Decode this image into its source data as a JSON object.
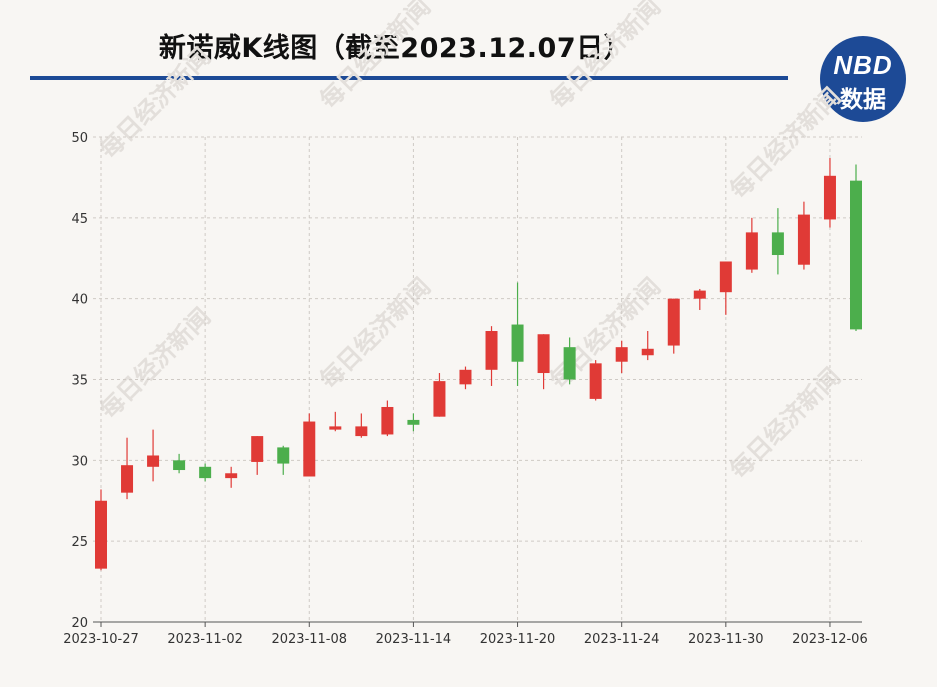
{
  "title": "新诺威K线图（截至2023.12.07日）",
  "logo": {
    "top": "NBD",
    "bottom": "数据"
  },
  "watermark": "每日经济新闻",
  "colors": {
    "up": "#e03a36",
    "down": "#4cae4c",
    "title_rule": "#1d4a96",
    "logo_bg": "#1d4a96",
    "background": "#f8f6f3"
  },
  "chart_data": {
    "type": "candlestick",
    "title": "新诺威K线图（截至2023.12.07日）",
    "ylim": [
      20,
      50
    ],
    "yticks": [
      20,
      25,
      30,
      35,
      40,
      45,
      50
    ],
    "xtick_labels": [
      "2023-10-27",
      "2023-11-02",
      "2023-11-08",
      "2023-11-14",
      "2023-11-20",
      "2023-11-24",
      "2023-11-30",
      "2023-12-06"
    ],
    "xtick_index": [
      0,
      4,
      8,
      12,
      16,
      20,
      24,
      28
    ],
    "grid": true,
    "candles": [
      {
        "o": 23.3,
        "c": 27.5,
        "h": 28.2,
        "l": 23.2
      },
      {
        "o": 28.0,
        "c": 29.7,
        "h": 31.4,
        "l": 27.6
      },
      {
        "o": 29.6,
        "c": 30.3,
        "h": 31.9,
        "l": 28.7
      },
      {
        "o": 30.0,
        "c": 29.4,
        "h": 30.4,
        "l": 29.2
      },
      {
        "o": 29.6,
        "c": 28.9,
        "h": 29.8,
        "l": 28.7
      },
      {
        "o": 28.9,
        "c": 29.2,
        "h": 29.6,
        "l": 28.3
      },
      {
        "o": 29.9,
        "c": 31.5,
        "h": 31.5,
        "l": 29.1
      },
      {
        "o": 30.8,
        "c": 29.8,
        "h": 30.9,
        "l": 29.1
      },
      {
        "o": 29.0,
        "c": 32.4,
        "h": 32.9,
        "l": 29.0
      },
      {
        "o": 31.9,
        "c": 32.1,
        "h": 33.0,
        "l": 31.8
      },
      {
        "o": 31.5,
        "c": 32.1,
        "h": 32.9,
        "l": 31.4
      },
      {
        "o": 31.6,
        "c": 33.3,
        "h": 33.7,
        "l": 31.5
      },
      {
        "o": 32.5,
        "c": 32.2,
        "h": 32.9,
        "l": 31.8
      },
      {
        "o": 32.7,
        "c": 34.9,
        "h": 35.4,
        "l": 32.7
      },
      {
        "o": 34.7,
        "c": 35.6,
        "h": 35.8,
        "l": 34.4
      },
      {
        "o": 35.6,
        "c": 38.0,
        "h": 38.3,
        "l": 34.6
      },
      {
        "o": 38.4,
        "c": 36.1,
        "h": 41.0,
        "l": 34.6
      },
      {
        "o": 35.4,
        "c": 37.8,
        "h": 37.8,
        "l": 34.4
      },
      {
        "o": 37.0,
        "c": 35.0,
        "h": 37.6,
        "l": 34.7
      },
      {
        "o": 33.8,
        "c": 36.0,
        "h": 36.2,
        "l": 33.7
      },
      {
        "o": 36.1,
        "c": 37.0,
        "h": 37.4,
        "l": 35.4
      },
      {
        "o": 36.5,
        "c": 36.9,
        "h": 38.0,
        "l": 36.2
      },
      {
        "o": 37.1,
        "c": 40.0,
        "h": 40.0,
        "l": 36.6
      },
      {
        "o": 40.0,
        "c": 40.5,
        "h": 40.6,
        "l": 39.3
      },
      {
        "o": 40.4,
        "c": 42.3,
        "h": 42.3,
        "l": 39.0
      },
      {
        "o": 41.8,
        "c": 44.1,
        "h": 45.0,
        "l": 41.6
      },
      {
        "o": 44.1,
        "c": 42.7,
        "h": 45.6,
        "l": 41.5
      },
      {
        "o": 42.1,
        "c": 45.2,
        "h": 46.0,
        "l": 41.8
      },
      {
        "o": 44.9,
        "c": 47.6,
        "h": 48.7,
        "l": 44.4
      },
      {
        "o": 47.3,
        "c": 38.1,
        "h": 48.3,
        "l": 38.0
      }
    ]
  }
}
